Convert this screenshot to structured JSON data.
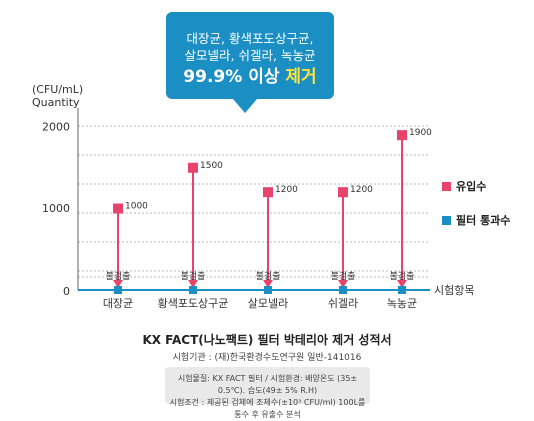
{
  "callout": {
    "line1": "대장균, 황색포도상구균,",
    "line2": "살모넬라, 쉬겔라, 녹농균",
    "line3_value": "99.9% 이상 ",
    "line3_accent": "제거"
  },
  "unit_label": "(CFU/mL)",
  "quantity_label": "Quantity",
  "legend": {
    "inflow": "유입수",
    "filtered": "필터 통과수"
  },
  "report_title": "KX FACT(나노팩트) 필터 박테리아 제거 성적서",
  "agency": "시험기관 : (재)한국환경수도연구원 일반-141016",
  "notes": {
    "line1": "시험물질: KX FACT 필터 / 시험환경: 배양온도 (35± 0.5℃). 습도(49± 5% R.H)",
    "line2": "시험조건 : 제공된 검체에 조제수(±10³ CFU/ml) 100L를 통수 후 유출수 분석"
  },
  "chart_data": {
    "type": "scatter",
    "xlabel": "시험항목",
    "ylabel": "Quantity",
    "unit": "CFU/mL",
    "y_ticks": [
      0,
      1000,
      2000
    ],
    "ylim": [
      0,
      2100
    ],
    "grid": true,
    "legend_position": "right",
    "colors": {
      "inflow": "#e8436a",
      "filtered": "#1b8ec4"
    },
    "categories": [
      "대장균",
      "황색포도상구균",
      "살모넬라",
      "쉬겔라",
      "녹농균"
    ],
    "series": [
      {
        "name": "유입수",
        "values": [
          1000,
          1500,
          1200,
          1200,
          1900
        ],
        "labels": [
          "1000",
          "1500",
          "1200",
          "1200",
          "1900"
        ]
      },
      {
        "name": "필터 통과수",
        "values": [
          0,
          0,
          0,
          0,
          0
        ],
        "labels": [
          "불검출",
          "불검출",
          "불검출",
          "불검출",
          "불검출"
        ]
      }
    ]
  }
}
